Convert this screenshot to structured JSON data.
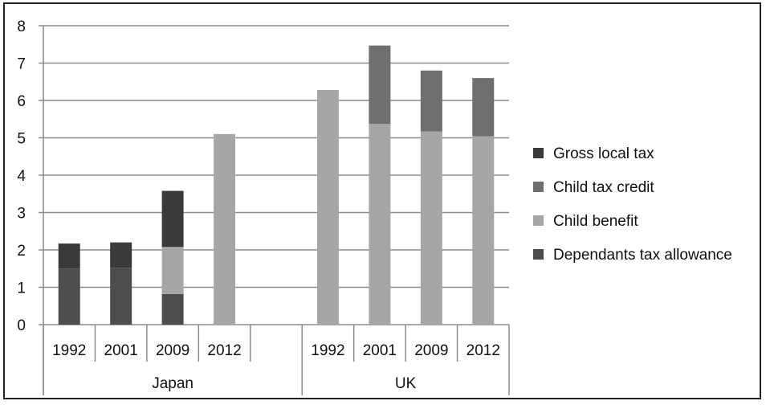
{
  "chart_data": {
    "type": "bar",
    "stacked": true,
    "ylim": [
      0,
      8
    ],
    "yticks": [
      "0",
      "1",
      "2",
      "3",
      "4",
      "5",
      "6",
      "7",
      "8"
    ],
    "grid": true,
    "legend_position": "right",
    "groups": [
      {
        "name": "Japan",
        "categories": [
          "1992",
          "2001",
          "2009",
          "2012",
          ""
        ]
      },
      {
        "name": "UK",
        "categories": [
          "1992",
          "2001",
          "2009",
          "2012"
        ]
      }
    ],
    "categories": [
      "1992",
      "2001",
      "2009",
      "2012",
      "",
      "1992",
      "2001",
      "2009",
      "2012"
    ],
    "series": [
      {
        "name": "Dependants tax allowance",
        "color": "#4d4d4d",
        "values": [
          1.5,
          1.52,
          0.82,
          0,
          0,
          0,
          0,
          0,
          0
        ]
      },
      {
        "name": "Child benefit",
        "color": "#a6a6a6",
        "values": [
          0,
          0,
          1.26,
          5.1,
          0,
          6.28,
          5.37,
          5.17,
          5.04
        ]
      },
      {
        "name": "Child tax credit",
        "color": "#6f6f6f",
        "values": [
          0,
          0,
          0,
          0,
          0,
          0,
          2.1,
          1.63,
          1.56
        ]
      },
      {
        "name": "Gross local tax",
        "color": "#3a3a3a",
        "values": [
          0.67,
          0.68,
          1.5,
          0,
          0,
          0,
          0,
          0,
          0
        ]
      }
    ]
  }
}
